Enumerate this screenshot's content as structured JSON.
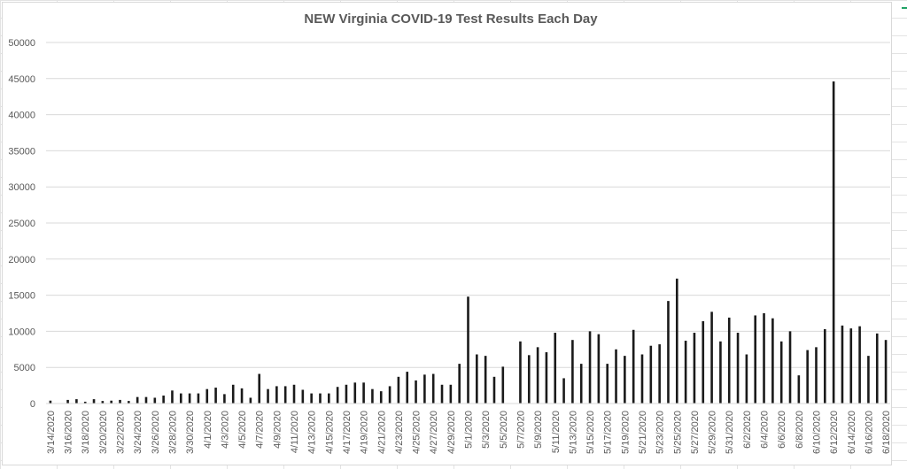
{
  "colors": {
    "bar": "#1a1a1a",
    "gridline": "#d9d9d9",
    "text": "#595959",
    "accent": "#21a366"
  },
  "chart_data": {
    "type": "bar",
    "title": "NEW Virginia COVID-19 Test Results Each Day",
    "xlabel": "",
    "ylabel": "",
    "ylim": [
      0,
      50000
    ],
    "yticks": [
      0,
      5000,
      10000,
      15000,
      20000,
      25000,
      30000,
      35000,
      40000,
      45000,
      50000
    ],
    "grid": true,
    "legend": "none",
    "categories": [
      "3/14/2020",
      "3/15/2020",
      "3/16/2020",
      "3/17/2020",
      "3/18/2020",
      "3/19/2020",
      "3/20/2020",
      "3/21/2020",
      "3/22/2020",
      "3/23/2020",
      "3/24/2020",
      "3/25/2020",
      "3/26/2020",
      "3/27/2020",
      "3/28/2020",
      "3/29/2020",
      "3/30/2020",
      "3/31/2020",
      "4/1/2020",
      "4/2/2020",
      "4/3/2020",
      "4/4/2020",
      "4/5/2020",
      "4/6/2020",
      "4/7/2020",
      "4/8/2020",
      "4/9/2020",
      "4/10/2020",
      "4/11/2020",
      "4/12/2020",
      "4/13/2020",
      "4/14/2020",
      "4/15/2020",
      "4/16/2020",
      "4/17/2020",
      "4/18/2020",
      "4/19/2020",
      "4/20/2020",
      "4/21/2020",
      "4/22/2020",
      "4/23/2020",
      "4/24/2020",
      "4/25/2020",
      "4/26/2020",
      "4/27/2020",
      "4/28/2020",
      "4/29/2020",
      "4/30/2020",
      "5/1/2020",
      "5/2/2020",
      "5/3/2020",
      "5/4/2020",
      "5/5/2020",
      "5/6/2020",
      "5/7/2020",
      "5/8/2020",
      "5/9/2020",
      "5/10/2020",
      "5/11/2020",
      "5/12/2020",
      "5/13/2020",
      "5/14/2020",
      "5/15/2020",
      "5/16/2020",
      "5/17/2020",
      "5/18/2020",
      "5/19/2020",
      "5/20/2020",
      "5/21/2020",
      "5/22/2020",
      "5/23/2020",
      "5/24/2020",
      "5/25/2020",
      "5/26/2020",
      "5/27/2020",
      "5/28/2020",
      "5/29/2020",
      "5/30/2020",
      "5/31/2020",
      "6/1/2020",
      "6/2/2020",
      "6/3/2020",
      "6/4/2020",
      "6/5/2020",
      "6/6/2020",
      "6/7/2020",
      "6/8/2020",
      "6/9/2020",
      "6/10/2020",
      "6/11/2020",
      "6/12/2020",
      "6/13/2020",
      "6/14/2020",
      "6/15/2020",
      "6/16/2020",
      "6/17/2020",
      "6/18/2020"
    ],
    "values": [
      400,
      0,
      500,
      600,
      250,
      600,
      350,
      400,
      500,
      350,
      900,
      900,
      800,
      1100,
      1800,
      1400,
      1400,
      1400,
      2000,
      2200,
      1300,
      2600,
      2100,
      800,
      4100,
      2000,
      2400,
      2400,
      2600,
      1900,
      1400,
      1400,
      1400,
      2300,
      2600,
      2900,
      2900,
      2000,
      1700,
      2400,
      3700,
      4400,
      3200,
      4000,
      4100,
      2600,
      2600,
      5500,
      14800,
      6800,
      6600,
      3700,
      5100,
      0,
      8600,
      6700,
      7800,
      7100,
      9800,
      3500,
      8800,
      5500,
      10000,
      9600,
      5500,
      7500,
      6600,
      10200,
      6800,
      8000,
      8200,
      14200,
      17300,
      8700,
      9800,
      11400,
      12700,
      8600,
      11900,
      9800,
      6800,
      12200,
      12500,
      11800,
      8600,
      10000,
      3900,
      7400,
      7800,
      10300,
      44600,
      10800,
      10400,
      10700,
      6600,
      9700,
      8800
    ]
  }
}
